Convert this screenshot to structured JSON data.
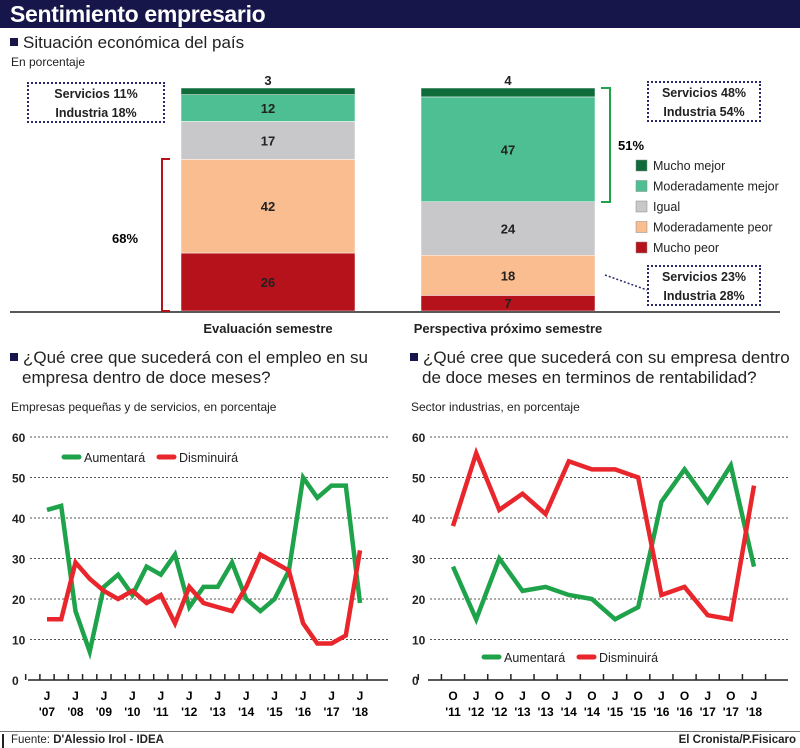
{
  "header": {
    "title": "Sentimiento empresario"
  },
  "section1": {
    "title": "Situación económica del país",
    "subtitle": "En porcentaje"
  },
  "chart_data": [
    {
      "type": "bar",
      "stacked": true,
      "categories": [
        "Evaluación semestre",
        "Perspectiva próximo semestre"
      ],
      "series": [
        {
          "name": "Mucho peor",
          "color": "#b5121b",
          "values": [
            26,
            7
          ]
        },
        {
          "name": "Moderadamente peor",
          "color": "#f9bd8f",
          "values": [
            42,
            18
          ]
        },
        {
          "name": "Igual",
          "color": "#c8c8ca",
          "values": [
            17,
            24
          ]
        },
        {
          "name": "Moderadamente mejor",
          "color": "#4dbf93",
          "values": [
            12,
            47
          ]
        },
        {
          "name": "Mucho mejor",
          "color": "#0f6b3a",
          "values": [
            3,
            4
          ]
        }
      ],
      "legend_order": [
        "Mucho mejor",
        "Moderadamente mejor",
        "Igual",
        "Moderadamente peor",
        "Mucho peor"
      ],
      "legend_placement": "right",
      "annotations": {
        "left_bracket": "68%",
        "right_bracket": "51%",
        "left_box": [
          "Servicios 11%",
          "Industria 18%"
        ],
        "right_top_box": [
          "Servicios 48%",
          "Industria 54%"
        ],
        "right_bottom_box": [
          "Servicios 23%",
          "Industria 28%"
        ]
      }
    },
    {
      "type": "line",
      "title": "¿Qué cree que sucederá con el empleo en su empresa dentro de doce meses?",
      "subtitle": "Empresas pequeñas y de servicios, en porcentaje",
      "ylim": [
        0,
        60
      ],
      "yticks": [
        0,
        10,
        20,
        30,
        40,
        50,
        60
      ],
      "grid": true,
      "legend_placement": "top-left",
      "xtick_labels": [
        [
          "J",
          "'07"
        ],
        [
          "J",
          "'08"
        ],
        [
          "J",
          "'09"
        ],
        [
          "J",
          "'10"
        ],
        [
          "J",
          "'11"
        ],
        [
          "J",
          "'12"
        ],
        [
          "J",
          "'13"
        ],
        [
          "J",
          "'14"
        ],
        [
          "J",
          "'15"
        ],
        [
          "J",
          "'16"
        ],
        [
          "J",
          "'17"
        ],
        [
          "J",
          "'18"
        ]
      ],
      "series": [
        {
          "name": "Aumentará",
          "color": "#1fa34a",
          "values": [
            42,
            43,
            17,
            7,
            23,
            26,
            21,
            28,
            26,
            31,
            18,
            23,
            23,
            29,
            20,
            17,
            20,
            27,
            50,
            45,
            48,
            48,
            19
          ]
        },
        {
          "name": "Disminuirá",
          "color": "#e8262b",
          "values": [
            15,
            15,
            29,
            25,
            22,
            20,
            22,
            19,
            21,
            14,
            23,
            19,
            18,
            17,
            23,
            31,
            29,
            27,
            14,
            9,
            9,
            11,
            32
          ]
        }
      ]
    },
    {
      "type": "line",
      "title": "¿Qué cree que sucederá con su empresa dentro de doce meses en terminos de rentabilidad?",
      "subtitle": "Sector industrias, en porcentaje",
      "ylim": [
        0,
        60
      ],
      "yticks": [
        0,
        10,
        20,
        30,
        40,
        50,
        60
      ],
      "grid": true,
      "legend_placement": "bottom-left",
      "xtick_labels": [
        [
          "O",
          "'11"
        ],
        [
          "J",
          "'12"
        ],
        [
          "O",
          "'12"
        ],
        [
          "J",
          "'13"
        ],
        [
          "O",
          "'13"
        ],
        [
          "J",
          "'14"
        ],
        [
          "O",
          "'14"
        ],
        [
          "J",
          "'15"
        ],
        [
          "O",
          "'15"
        ],
        [
          "J",
          "'16"
        ],
        [
          "O",
          "'16"
        ],
        [
          "J",
          "'17"
        ],
        [
          "O",
          "'17"
        ],
        [
          "J",
          "'18"
        ]
      ],
      "series": [
        {
          "name": "Aumentará",
          "color": "#1fa34a",
          "values": [
            28,
            15,
            30,
            22,
            23,
            21,
            20,
            15,
            18,
            44,
            52,
            44,
            53,
            28
          ]
        },
        {
          "name": "Disminuirá",
          "color": "#e8262b",
          "values": [
            38,
            56,
            42,
            46,
            41,
            54,
            52,
            52,
            50,
            21,
            23,
            16,
            15,
            48
          ]
        }
      ]
    }
  ],
  "section2": {
    "title_line1": "¿Qué cree que sucederá con el empleo en su",
    "title_line2": "empresa dentro de doce meses?",
    "subtitle": "Empresas pequeñas y de servicios, en porcentaje"
  },
  "section3": {
    "title_line1": "¿Qué cree que sucederá con su empresa dentro",
    "title_line2": "de doce meses en terminos de rentabilidad?",
    "subtitle": "Sector industrias, en porcentaje"
  },
  "footer": {
    "source_label": "Fuente: ",
    "source": "D'Alessio Irol - IDEA",
    "credit": "El Cronista/P.Fisicaro"
  }
}
